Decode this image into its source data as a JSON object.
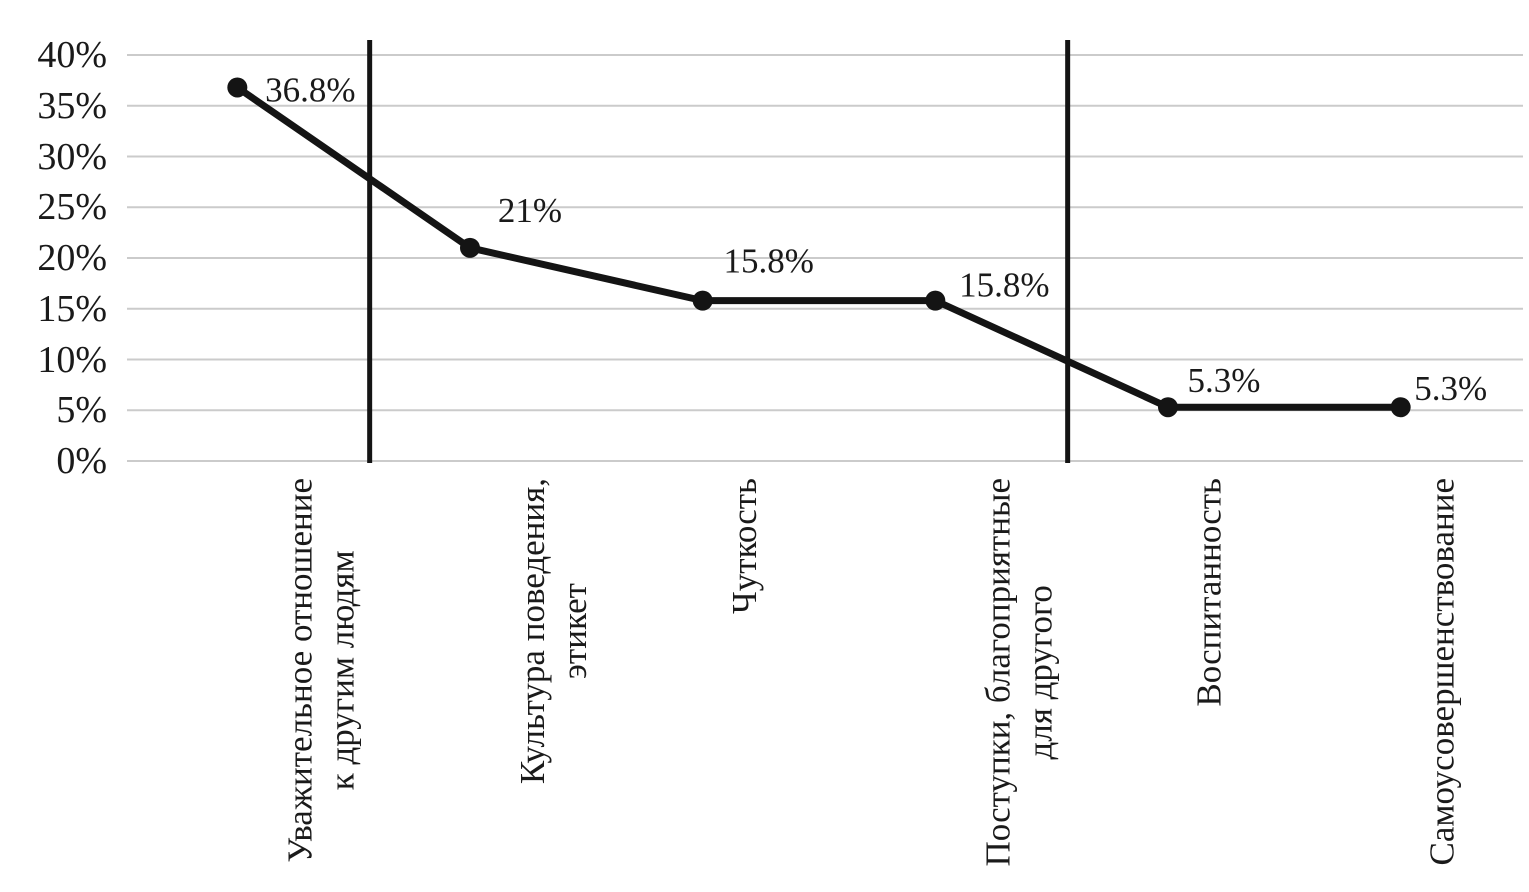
{
  "figure": {
    "kind": "scanned statistical figure, line chart with markers",
    "title": "",
    "background_color": "#ffffff",
    "text_color": "#1a1a1a"
  },
  "chart_data": {
    "type": "line",
    "title": "",
    "xlabel": "",
    "ylabel": "",
    "categories": [
      "Уважительное отношение\nк другим людям",
      "Культура поведения,\nэтикет",
      "Чуткость",
      "Поступки, благоприятные\nдля другого",
      "Воспитанность",
      "Самоусовершенствование"
    ],
    "values": [
      36.8,
      21,
      15.8,
      15.8,
      5.3,
      5.3
    ],
    "data_labels": [
      "36.8%",
      "21%",
      "15.8%",
      "15.8%",
      "5.3%",
      "5.3%"
    ],
    "y_tick_values": [
      40,
      35,
      30,
      25,
      20,
      15,
      10,
      5,
      0
    ],
    "y_tick_labels": [
      "40%",
      "35%",
      "30%",
      "25%",
      "20%",
      "15%",
      "10%",
      "5%",
      "0%"
    ],
    "ylim": [
      0,
      40
    ],
    "grid": "horizontal",
    "legend": "none",
    "dividers_after_category": [
      0,
      3
    ],
    "series_color": "#141414",
    "marker_color": "#141414",
    "divider_color": "#141414",
    "gridline_color": "#cbcbcb",
    "category_label_rotation_deg": -90
  }
}
